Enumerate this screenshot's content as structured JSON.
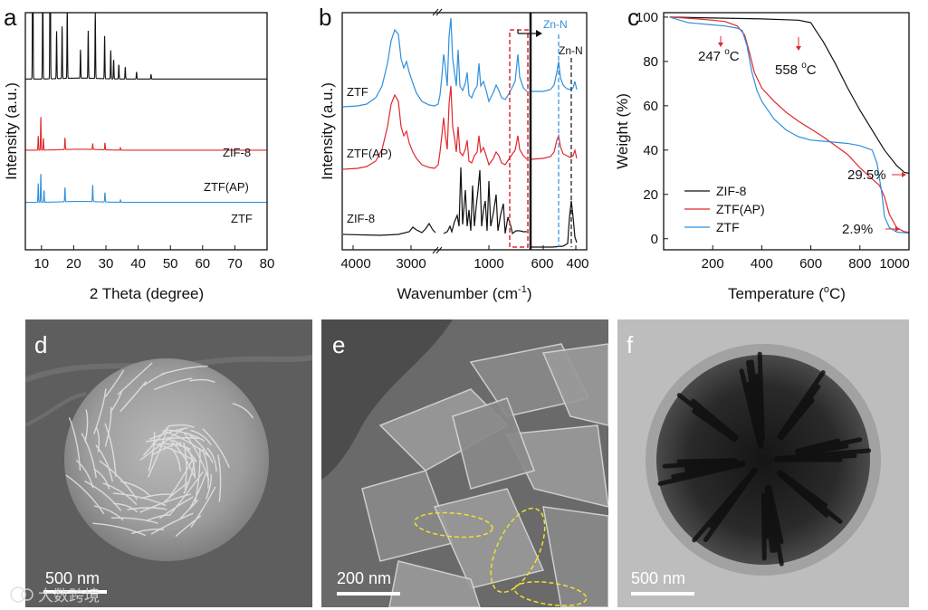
{
  "chart_data": [
    {
      "panel": "a",
      "type": "line",
      "xlabel": "2 Theta (degree)",
      "ylabel": "Intensity (a.u.)",
      "xlim": [
        5,
        80
      ],
      "xticks": [
        10,
        20,
        30,
        40,
        50,
        60,
        70,
        80
      ],
      "series": [
        {
          "name": "ZIF-8",
          "color": "#111111",
          "baseline": 0.72,
          "peaks": [
            [
              7.3,
              1.0
            ],
            [
              10.4,
              0.45
            ],
            [
              12.7,
              1.0
            ],
            [
              14.7,
              0.2
            ],
            [
              16.4,
              0.22
            ],
            [
              18.0,
              0.3
            ],
            [
              22.1,
              0.12
            ],
            [
              24.5,
              0.2
            ],
            [
              26.7,
              0.28
            ],
            [
              29.6,
              0.18
            ],
            [
              31.5,
              0.12
            ],
            [
              32.4,
              0.08
            ],
            [
              34.0,
              0.06
            ],
            [
              36.0,
              0.05
            ],
            [
              39.5,
              0.03
            ],
            [
              44.0,
              0.02
            ]
          ]
        },
        {
          "name": "ZTF(AP)",
          "color": "#e0282e",
          "baseline": 0.42,
          "peaks": [
            [
              9.0,
              0.06
            ],
            [
              9.8,
              0.14
            ],
            [
              10.6,
              0.05
            ],
            [
              17.3,
              0.05
            ],
            [
              25.9,
              0.025
            ],
            [
              29.7,
              0.03
            ],
            [
              34.5,
              0.01
            ]
          ]
        },
        {
          "name": "ZTF",
          "color": "#2f8fdc",
          "baseline": 0.2,
          "peaks": [
            [
              9.0,
              0.08
            ],
            [
              9.8,
              0.12
            ],
            [
              10.8,
              0.05
            ],
            [
              17.3,
              0.06
            ],
            [
              25.9,
              0.07
            ],
            [
              29.7,
              0.04
            ],
            [
              34.5,
              0.01
            ]
          ]
        }
      ]
    },
    {
      "panel": "b",
      "type": "line",
      "xlabel": "Wavenumber (cm",
      "xlabel_sup": "-1",
      "xlabel_end": ")",
      "ylabel": "Intensity (a.u.)",
      "xticks": [
        "4000",
        "3000",
        "1000",
        "600",
        "400"
      ],
      "annotations": [
        "Zn-N",
        "Zn-N"
      ],
      "series": [
        {
          "name": "ZTF",
          "color": "#2f8fdc"
        },
        {
          "name": "ZTF(AP)",
          "color": "#e0282e"
        },
        {
          "name": "ZIF-8",
          "color": "#111111"
        }
      ]
    },
    {
      "panel": "c",
      "type": "line",
      "xlabel": "Temperature (",
      "xlabel_sup": "o",
      "xlabel_end": "C)",
      "ylabel": "Weight (%)",
      "xlim": [
        0,
        1000
      ],
      "ylim": [
        -5,
        102
      ],
      "xticks": [
        200,
        400,
        600,
        800,
        1000
      ],
      "yticks": [
        0,
        20,
        40,
        60,
        80,
        100
      ],
      "legend": "bottom-left",
      "annotations": [
        {
          "text": "247 ",
          "sup": "o",
          "end": "C"
        },
        {
          "text": "558 ",
          "sup": "o",
          "end": "C"
        },
        {
          "text": "29.5%"
        },
        {
          "text": "2.9%"
        }
      ],
      "series": [
        {
          "name": "ZIF-8",
          "color": "#111111",
          "x": [
            25,
            200,
            400,
            550,
            600,
            620,
            650,
            700,
            750,
            800,
            850,
            900,
            950,
            980,
            1000
          ],
          "y": [
            100,
            99.6,
            99.2,
            98.6,
            97.5,
            94,
            89,
            79,
            68,
            58,
            49,
            40,
            33,
            30,
            29.5
          ]
        },
        {
          "name": "ZTF(AP)",
          "color": "#e0282e",
          "x": [
            25,
            100,
            200,
            250,
            300,
            330,
            350,
            370,
            400,
            450,
            500,
            550,
            600,
            650,
            700,
            750,
            800,
            850,
            880,
            900,
            920,
            950,
            980,
            1000
          ],
          "y": [
            100,
            99.5,
            98.6,
            98,
            96,
            92,
            84,
            75,
            68,
            62,
            57,
            53,
            49.5,
            46,
            42,
            38,
            32,
            27,
            24,
            19,
            11,
            5,
            3.2,
            2.9
          ]
        },
        {
          "name": "ZTF",
          "color": "#2f8fdc",
          "x": [
            25,
            100,
            200,
            250,
            300,
            320,
            340,
            360,
            380,
            400,
            450,
            500,
            550,
            600,
            650,
            700,
            750,
            800,
            850,
            870,
            890,
            900,
            920,
            950,
            1000
          ],
          "y": [
            100,
            97.5,
            96.5,
            96,
            95,
            94,
            87,
            75,
            67,
            62,
            54,
            49,
            46,
            44.5,
            44,
            43.5,
            43,
            42,
            40,
            34,
            20,
            10,
            5,
            3,
            2.5
          ]
        }
      ]
    }
  ],
  "panels": {
    "a_label": "a",
    "b_label": "b",
    "c_label": "c",
    "d_label": "d",
    "e_label": "e",
    "f_label": "f"
  },
  "micrographs": {
    "d_scale": "500 nm",
    "e_scale": "200 nm",
    "f_scale": "500 nm"
  },
  "watermark": "大数跨境",
  "colors": {
    "black": "#111111",
    "red": "#e0282e",
    "blue": "#2f8fdc",
    "highlight": "#f2e12c"
  }
}
